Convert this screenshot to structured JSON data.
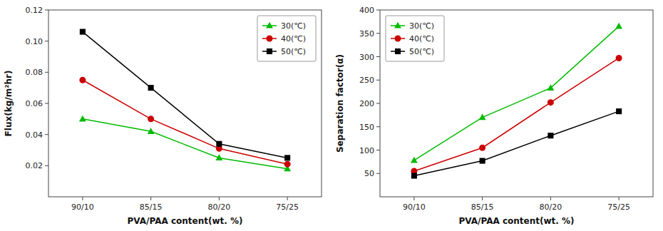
{
  "chart_data": [
    {
      "type": "line",
      "x_label": "PVA/PAA content(wt. %)",
      "y_label": "Flux(kg/m²hr)",
      "categories": [
        "90/10",
        "85/15",
        "80/20",
        "75/25"
      ],
      "series": [
        {
          "name": "30(℃)",
          "color": "#00bb00",
          "marker": "triangle",
          "line_style": "solid",
          "values": [
            0.05,
            0.042,
            0.025,
            0.018
          ]
        },
        {
          "name": "40(℃)",
          "color": "#cc0000",
          "marker": "circle",
          "line_style": "solid",
          "values": [
            0.075,
            0.05,
            0.031,
            0.021
          ]
        },
        {
          "name": "50(℃)",
          "color": "#000000",
          "marker": "square",
          "line_style": "solid",
          "values": [
            0.106,
            0.07,
            0.034,
            0.025
          ]
        }
      ],
      "ylim": [
        0.0,
        0.12
      ],
      "yticks": [
        0.02,
        0.04,
        0.06,
        0.08,
        {
          "value": 0.1,
          "label": "0.10"
        },
        0.12
      ],
      "legend": "upper right",
      "grid": false
    },
    {
      "type": "line",
      "x_label": "PVA/PAA content(wt. %)",
      "y_label": "Separation factor(α)",
      "categories": [
        "90/10",
        "85/15",
        "80/20",
        "75/25"
      ],
      "series": [
        {
          "name": "30(℃)",
          "color": "#00bb00",
          "marker": "triangle",
          "line_style": "solid",
          "values": [
            78,
            170,
            233,
            365
          ]
        },
        {
          "name": "40(℃)",
          "color": "#cc0000",
          "marker": "circle",
          "line_style": "solid",
          "values": [
            55,
            105,
            202,
            297
          ]
        },
        {
          "name": "50(℃)",
          "color": "#000000",
          "marker": "square",
          "line_style": "solid",
          "values": [
            45,
            77,
            131,
            183
          ]
        }
      ],
      "ylim": [
        0,
        400
      ],
      "yticks": [
        50,
        100,
        150,
        200,
        250,
        300,
        350,
        400
      ],
      "legend": "upper left",
      "grid": false
    }
  ]
}
